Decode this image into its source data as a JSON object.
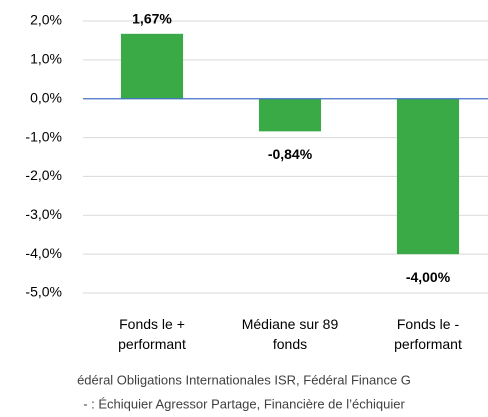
{
  "chart_data": {
    "type": "bar",
    "categories": [
      "Fonds le +\nperformant",
      "Médiane sur 89\nfonds",
      "Fonds le -\nperformant"
    ],
    "values": [
      1.67,
      -0.84,
      -4.0
    ],
    "value_labels": [
      "1,67%",
      "-0,84%",
      "-4,00%"
    ],
    "color": "#3aaa47",
    "ylim": [
      -5,
      2
    ],
    "yticks": [
      {
        "value": 2,
        "label": "2,0%"
      },
      {
        "value": 1,
        "label": "1,0%"
      },
      {
        "value": 0,
        "label": "0,0%"
      },
      {
        "value": -1,
        "label": "-1,0%"
      },
      {
        "value": -2,
        "label": "-2,0%"
      },
      {
        "value": -3,
        "label": "-3,0%"
      },
      {
        "value": -4,
        "label": "-4,0%"
      },
      {
        "value": -5,
        "label": "-5,0%"
      }
    ],
    "grid": true,
    "zero_line_color": "#4472c4",
    "notes": [
      "édéral Obligations Internationales ISR, Fédéral Finance G",
      "- : Échiquier Agressor Partage, Financière de l’échiquier"
    ]
  }
}
